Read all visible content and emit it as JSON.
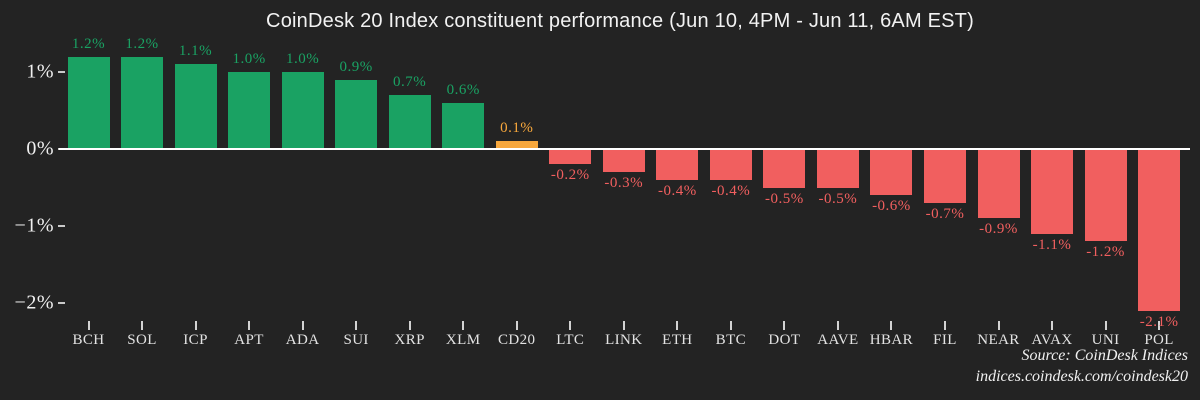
{
  "title": "CoinDesk 20 Index constituent performance (Jun 10, 4PM - Jun 11, 6AM EST)",
  "source": {
    "line1": "Source: CoinDesk Indices",
    "line2": "indices.coindesk.com/coindesk20"
  },
  "chart_data": {
    "type": "bar",
    "title": "CoinDesk 20 Index constituent performance (Jun 10, 4PM - Jun 11, 6AM EST)",
    "categories": [
      "BCH",
      "SOL",
      "ICP",
      "APT",
      "ADA",
      "SUI",
      "XRP",
      "XLM",
      "CD20",
      "LTC",
      "LINK",
      "ETH",
      "BTC",
      "DOT",
      "AAVE",
      "HBAR",
      "FIL",
      "NEAR",
      "AVAX",
      "UNI",
      "POL"
    ],
    "values": [
      1.2,
      1.2,
      1.1,
      1.0,
      1.0,
      0.9,
      0.7,
      0.6,
      0.1,
      -0.2,
      -0.3,
      -0.4,
      -0.4,
      -0.5,
      -0.5,
      -0.6,
      -0.7,
      -0.9,
      -1.1,
      -1.2,
      -2.1
    ],
    "value_labels": [
      "1.2%",
      "1.2%",
      "1.1%",
      "1.0%",
      "1.0%",
      "0.9%",
      "0.7%",
      "0.6%",
      "0.1%",
      "-0.2%",
      "-0.3%",
      "-0.4%",
      "-0.4%",
      "-0.5%",
      "-0.5%",
      "-0.6%",
      "-0.7%",
      "-0.9%",
      "-1.1%",
      "-1.2%",
      "-2.1%"
    ],
    "yticks": [
      {
        "label": "1%",
        "value": 1
      },
      {
        "label": "0%",
        "value": 0
      },
      {
        "label": "−1%",
        "value": -1
      },
      {
        "label": "−2%",
        "value": -2
      }
    ],
    "ylim": [
      -2.4,
      1.45
    ],
    "xlabel": "",
    "ylabel": "",
    "grid": false,
    "legend": "none",
    "zero_line": true,
    "colors": {
      "positive": "#1aa263",
      "negative": "#f15f5f",
      "highlight": "#f7a73c",
      "highlight_category": "CD20",
      "background": "#232323",
      "zero_line": "#ffffff"
    }
  }
}
